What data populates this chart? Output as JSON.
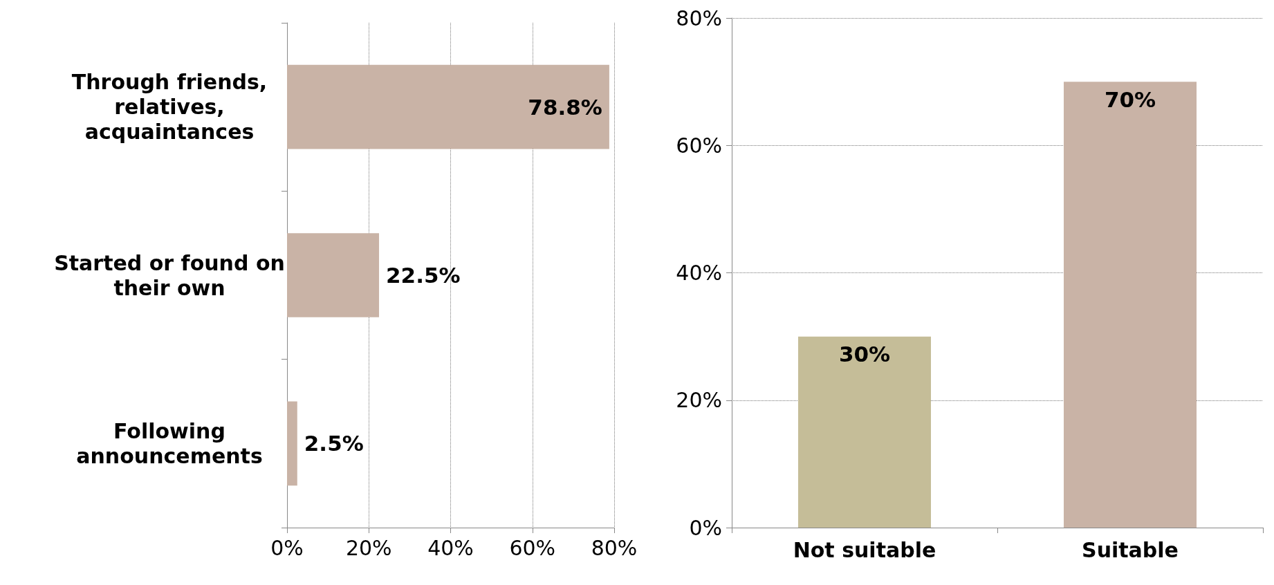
{
  "chart_data": [
    {
      "type": "bar",
      "orientation": "horizontal",
      "categories": [
        "Through friends,\nrelatives,\nacquaintances",
        "Started or found on\ntheir own",
        "Following\nannouncements"
      ],
      "values": [
        78.8,
        22.5,
        2.5
      ],
      "color": "#c9b3a6",
      "value_labels": [
        "78.8%",
        "22.5%",
        "2.5%"
      ],
      "xlim": [
        0,
        80
      ],
      "xticks": [
        {
          "value": 0,
          "label": "0%"
        },
        {
          "value": 20,
          "label": "20%"
        },
        {
          "value": 40,
          "label": "40%"
        },
        {
          "value": 60,
          "label": "60%"
        },
        {
          "value": 80,
          "label": "80%"
        }
      ],
      "grid": "x"
    },
    {
      "type": "bar",
      "categories": [
        "Not suitable",
        "Suitable"
      ],
      "values": [
        30,
        70
      ],
      "colors": [
        "#c5bd98",
        "#c9b3a6"
      ],
      "value_labels": [
        "30%",
        "70%"
      ],
      "ylim": [
        0,
        80
      ],
      "yticks": [
        {
          "value": 0,
          "label": "0%"
        },
        {
          "value": 20,
          "label": "20%"
        },
        {
          "value": 40,
          "label": "40%"
        },
        {
          "value": 60,
          "label": "60%"
        },
        {
          "value": 80,
          "label": "80%"
        }
      ],
      "grid": "y"
    }
  ]
}
